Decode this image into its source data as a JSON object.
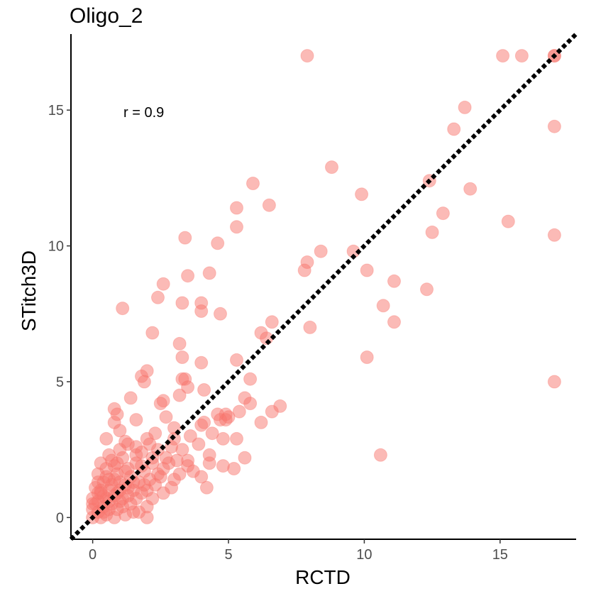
{
  "chart_data": {
    "type": "scatter",
    "title": "Oligo_2",
    "xlabel": "RCTD",
    "ylabel": "STitch3D",
    "xlim": [
      -0.8,
      17.8
    ],
    "ylim": [
      -0.8,
      17.8
    ],
    "xticks": [
      0,
      5,
      10,
      15
    ],
    "yticks": [
      0,
      5,
      10,
      15
    ],
    "grid": false,
    "annotation": "r = 0.9",
    "reference_line": {
      "from": [
        -0.8,
        -0.8
      ],
      "to": [
        17.8,
        17.8
      ],
      "style": "dotted",
      "color": "#000000"
    },
    "point_color": "#F8766D",
    "point_opacity": 0.5,
    "points": [
      [
        7.9,
        17.0
      ],
      [
        15.1,
        17.0
      ],
      [
        15.8,
        17.0
      ],
      [
        17.0,
        17.0
      ],
      [
        17.0,
        17.0
      ],
      [
        13.7,
        15.1
      ],
      [
        13.3,
        14.3
      ],
      [
        17.0,
        14.4
      ],
      [
        8.8,
        12.9
      ],
      [
        5.9,
        12.3
      ],
      [
        12.4,
        12.4
      ],
      [
        9.9,
        11.9
      ],
      [
        13.9,
        12.1
      ],
      [
        5.3,
        11.4
      ],
      [
        6.5,
        11.5
      ],
      [
        12.9,
        11.2
      ],
      [
        5.3,
        10.7
      ],
      [
        15.3,
        10.9
      ],
      [
        12.5,
        10.5
      ],
      [
        17.0,
        10.4
      ],
      [
        3.4,
        10.3
      ],
      [
        4.6,
        10.1
      ],
      [
        8.4,
        9.8
      ],
      [
        9.6,
        9.8
      ],
      [
        7.9,
        9.4
      ],
      [
        7.8,
        9.1
      ],
      [
        3.5,
        8.9
      ],
      [
        4.3,
        9.0
      ],
      [
        10.1,
        9.1
      ],
      [
        11.1,
        8.7
      ],
      [
        2.6,
        8.6
      ],
      [
        12.3,
        8.4
      ],
      [
        2.4,
        8.1
      ],
      [
        4.0,
        7.9
      ],
      [
        3.3,
        7.9
      ],
      [
        1.1,
        7.7
      ],
      [
        4.0,
        7.6
      ],
      [
        4.7,
        7.5
      ],
      [
        10.7,
        7.8
      ],
      [
        6.6,
        7.2
      ],
      [
        11.1,
        7.2
      ],
      [
        8.0,
        7.0
      ],
      [
        2.2,
        6.8
      ],
      [
        6.2,
        6.8
      ],
      [
        6.4,
        6.6
      ],
      [
        3.2,
        6.4
      ],
      [
        3.3,
        5.9
      ],
      [
        5.3,
        5.8
      ],
      [
        4.0,
        5.7
      ],
      [
        10.1,
        5.9
      ],
      [
        2.0,
        5.4
      ],
      [
        3.3,
        5.1
      ],
      [
        3.4,
        5.1
      ],
      [
        5.8,
        5.1
      ],
      [
        1.8,
        5.2
      ],
      [
        17.0,
        5.0
      ],
      [
        1.9,
        5.0
      ],
      [
        3.5,
        4.8
      ],
      [
        4.1,
        4.7
      ],
      [
        1.4,
        4.4
      ],
      [
        2.6,
        4.3
      ],
      [
        3.2,
        4.5
      ],
      [
        5.6,
        4.4
      ],
      [
        5.8,
        4.2
      ],
      [
        2.5,
        4.2
      ],
      [
        6.9,
        4.1
      ],
      [
        0.8,
        4.0
      ],
      [
        5.4,
        3.9
      ],
      [
        6.6,
        3.9
      ],
      [
        0.9,
        3.8
      ],
      [
        4.6,
        3.8
      ],
      [
        2.7,
        3.7
      ],
      [
        4.9,
        3.8
      ],
      [
        4.9,
        3.6
      ],
      [
        5.0,
        3.7
      ],
      [
        1.6,
        3.6
      ],
      [
        4.1,
        3.5
      ],
      [
        4.7,
        3.6
      ],
      [
        0.8,
        3.5
      ],
      [
        6.2,
        3.5
      ],
      [
        3.0,
        3.3
      ],
      [
        4.0,
        3.4
      ],
      [
        1.0,
        3.2
      ],
      [
        2.3,
        3.1
      ],
      [
        3.6,
        3.0
      ],
      [
        4.4,
        3.1
      ],
      [
        5.3,
        2.9
      ],
      [
        2.0,
        2.9
      ],
      [
        3.0,
        2.9
      ],
      [
        0.5,
        2.9
      ],
      [
        1.2,
        2.8
      ],
      [
        4.8,
        2.9
      ],
      [
        1.3,
        2.7
      ],
      [
        3.9,
        2.7
      ],
      [
        1.6,
        2.6
      ],
      [
        2.9,
        2.6
      ],
      [
        3.3,
        2.5
      ],
      [
        2.4,
        2.5
      ],
      [
        2.1,
        2.7
      ],
      [
        4.3,
        2.3
      ],
      [
        5.6,
        2.2
      ],
      [
        10.6,
        2.3
      ],
      [
        0.6,
        2.3
      ],
      [
        1.8,
        2.4
      ],
      [
        2.7,
        2.2
      ],
      [
        1.1,
        2.2
      ],
      [
        3.1,
        2.1
      ],
      [
        4.3,
        2.0
      ],
      [
        2.2,
        2.0
      ],
      [
        3.5,
        2.1
      ],
      [
        0.3,
        2.0
      ],
      [
        1.6,
        2.0
      ],
      [
        4.8,
        1.9
      ],
      [
        5.2,
        1.8
      ],
      [
        3.5,
        1.9
      ],
      [
        0.8,
        1.9
      ],
      [
        1.3,
        1.8
      ],
      [
        2.6,
        1.8
      ],
      [
        3.7,
        1.7
      ],
      [
        0.2,
        1.6
      ],
      [
        1.9,
        1.7
      ],
      [
        3.2,
        1.6
      ],
      [
        4.0,
        1.5
      ],
      [
        0.9,
        1.6
      ],
      [
        2.5,
        1.5
      ],
      [
        1.4,
        1.5
      ],
      [
        0.5,
        1.5
      ],
      [
        2.1,
        1.4
      ],
      [
        3.0,
        1.4
      ],
      [
        0.4,
        1.3
      ],
      [
        1.7,
        1.3
      ],
      [
        2.3,
        1.2
      ],
      [
        4.2,
        1.1
      ],
      [
        0.7,
        1.2
      ],
      [
        1.2,
        1.2
      ],
      [
        2.9,
        1.1
      ],
      [
        0.1,
        1.1
      ],
      [
        1.5,
        1.0
      ],
      [
        2.0,
        1.0
      ],
      [
        0.6,
        1.0
      ],
      [
        1.0,
        1.0
      ],
      [
        2.6,
        0.9
      ],
      [
        0.3,
        0.9
      ],
      [
        1.8,
        0.9
      ],
      [
        0.8,
        0.8
      ],
      [
        1.3,
        0.8
      ],
      [
        2.2,
        0.7
      ],
      [
        0.0,
        0.7
      ],
      [
        0.5,
        0.7
      ],
      [
        1.6,
        0.7
      ],
      [
        1.0,
        0.6
      ],
      [
        0.2,
        0.6
      ],
      [
        0.7,
        0.5
      ],
      [
        1.4,
        0.5
      ],
      [
        2.0,
        0.4
      ],
      [
        0.4,
        0.4
      ],
      [
        1.1,
        0.4
      ],
      [
        0.0,
        0.3
      ],
      [
        0.6,
        0.3
      ],
      [
        0.9,
        0.3
      ],
      [
        1.7,
        0.2
      ],
      [
        0.2,
        0.2
      ],
      [
        0.5,
        0.1
      ],
      [
        1.2,
        0.1
      ],
      [
        0.0,
        0.0
      ],
      [
        0.3,
        0.0
      ],
      [
        0.8,
        0.0
      ],
      [
        2.0,
        0.0
      ],
      [
        1.5,
        0.2
      ],
      [
        0.1,
        0.5
      ],
      [
        0.4,
        0.2
      ],
      [
        0.6,
        0.6
      ],
      [
        0.9,
        0.9
      ],
      [
        1.1,
        0.7
      ],
      [
        1.3,
        1.1
      ],
      [
        0.2,
        1.3
      ],
      [
        0.5,
        1.8
      ],
      [
        0.7,
        2.1
      ],
      [
        1.0,
        2.5
      ],
      [
        0.3,
        1.0
      ],
      [
        1.9,
        1.2
      ],
      [
        2.4,
        1.6
      ],
      [
        1.6,
        2.3
      ],
      [
        2.8,
        2.0
      ],
      [
        0.0,
        0.5
      ],
      [
        0.4,
        0.8
      ],
      [
        0.8,
        1.4
      ],
      [
        1.2,
        1.7
      ],
      [
        1.5,
        1.3
      ],
      [
        1.8,
        1.9
      ],
      [
        2.2,
        2.2
      ],
      [
        0.6,
        1.4
      ],
      [
        1.0,
        1.3
      ],
      [
        0.2,
        0.9
      ],
      [
        0.9,
        2.0
      ]
    ]
  }
}
